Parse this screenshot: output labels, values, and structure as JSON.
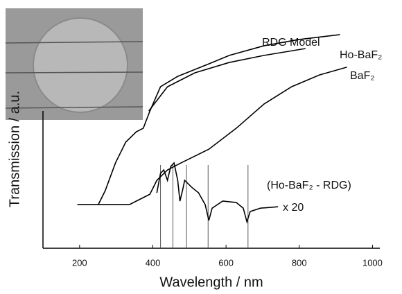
{
  "chart_data": {
    "type": "line",
    "x_label": "Wavelength / nm",
    "y_label": "Transmission / a.u.",
    "xlim": [
      100,
      1020
    ],
    "ylim": [
      0,
      100
    ],
    "xticks": [
      200,
      400,
      600,
      800,
      1000
    ],
    "series": [
      {
        "name": "RDG Model",
        "color": "#000000",
        "x": [
          389,
          440,
          515,
          609,
          704,
          817
        ],
        "values": [
          58.2,
          68.5,
          74.4,
          78.8,
          81.8,
          84.7
        ]
      },
      {
        "name": "Ho-BaF₂",
        "color": "#000000",
        "x": [
          251,
          270,
          298,
          326,
          355,
          374,
          392,
          421,
          468,
          553,
          609,
          704,
          798,
          911
        ],
        "values": [
          18.5,
          24.4,
          36.2,
          45,
          49.4,
          50.9,
          58.2,
          68.5,
          72.9,
          78.2,
          81.8,
          85.9,
          88.5,
          90.6
        ]
      },
      {
        "name": "BaF₂",
        "color": "#000000",
        "x": [
          194,
          336,
          355,
          392,
          411,
          440,
          477,
          553,
          628,
          704,
          779,
          855,
          930
        ],
        "values": [
          18.5,
          18.5,
          20,
          22.9,
          28.8,
          33.2,
          36.2,
          42,
          50.9,
          61.2,
          68.5,
          73.5,
          76.8
        ]
      },
      {
        "name": "(Ho-BaF₂ - RDG)",
        "color": "#000000",
        "x": [
          411,
          421,
          430,
          440,
          449,
          458,
          468,
          474,
          481,
          487,
          506,
          525,
          543,
          553,
          562,
          591,
          628,
          647,
          657,
          666,
          694,
          742
        ],
        "values": [
          23.5,
          31.8,
          33.2,
          28.8,
          34.7,
          36.2,
          28.8,
          20,
          24.4,
          28.8,
          25.9,
          23.5,
          18.5,
          11.8,
          17,
          20,
          19.4,
          17,
          11.2,
          15.6,
          17,
          17.6
        ]
      }
    ],
    "annotation": "x 20",
    "markers": [
      421,
      455,
      492,
      551,
      660
    ],
    "marker_color": "#555555"
  }
}
